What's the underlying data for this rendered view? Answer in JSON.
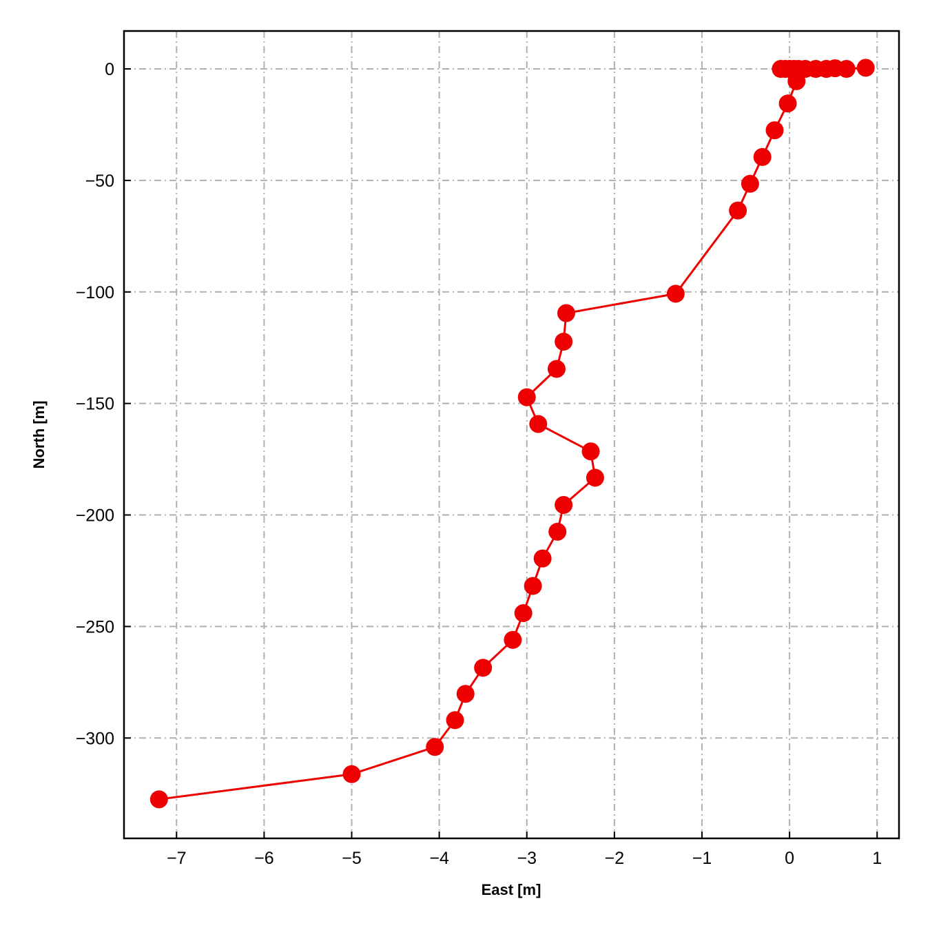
{
  "chart_data": {
    "type": "line",
    "title": "",
    "xlabel": "East [m]",
    "ylabel": "North [m]",
    "xlim": [
      -7.6,
      1.25
    ],
    "ylim": [
      -345,
      17
    ],
    "xticks": [
      -7,
      -6,
      -5,
      -4,
      -3,
      -2,
      -1,
      0,
      1
    ],
    "yticks": [
      0,
      -50,
      -100,
      -150,
      -200,
      -250,
      -300
    ],
    "xtick_labels": [
      "−7",
      "−6",
      "−5",
      "−4",
      "−3",
      "−2",
      "−1",
      "0",
      "1"
    ],
    "ytick_labels": [
      "0",
      "−50",
      "−100",
      "−150",
      "−200",
      "−250",
      "−300"
    ],
    "grid": true,
    "legend": false,
    "color": "#ee0000",
    "series": [
      {
        "x": [
          0.87,
          0.65,
          0.52,
          0.42,
          0.3,
          0.18,
          0.1,
          0.05,
          0.0,
          -0.05,
          -0.1,
          0.08,
          -0.02,
          -0.17,
          -0.31,
          -0.45,
          -0.59,
          -1.3,
          -2.55,
          -2.58,
          -2.66,
          -3.0,
          -2.87,
          -2.27,
          -2.22,
          -2.58,
          -2.65,
          -2.82,
          -2.93,
          -3.04,
          -3.16,
          -3.5,
          -3.7,
          -3.82,
          -4.05,
          -5.0,
          -7.2
        ],
        "y": [
          0.5,
          0.0,
          0.3,
          0.0,
          0.0,
          0.0,
          0.0,
          0.0,
          0.0,
          0.0,
          0.0,
          -5.5,
          -15.5,
          -27.5,
          -39.5,
          -51.5,
          -63.5,
          -100.8,
          -109.5,
          -122.3,
          -134.5,
          -147.2,
          -159.2,
          -171.5,
          -183.3,
          -195.5,
          -207.5,
          -219.5,
          -231.8,
          -244.0,
          -256.0,
          -268.5,
          -280.2,
          -292.0,
          -304.0,
          -316.2,
          -327.5
        ]
      }
    ]
  }
}
